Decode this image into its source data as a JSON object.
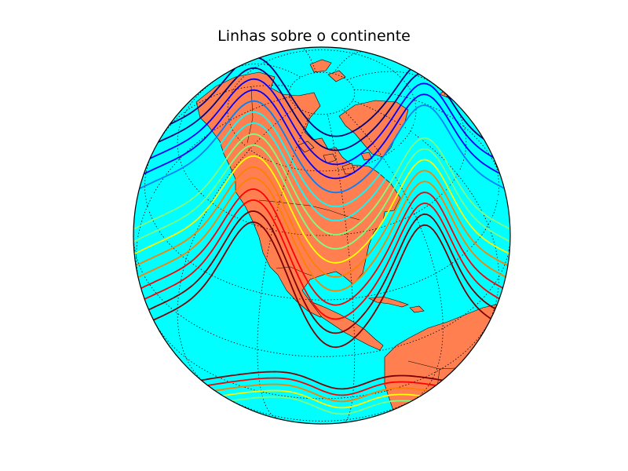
{
  "figure": {
    "title": "Linhas sobre o continente"
  },
  "map": {
    "projection": "orthographic",
    "center": {
      "lat": 40,
      "lon": -100
    },
    "graticule": {
      "meridian_step_deg": 30,
      "parallel_step_deg": 20,
      "style": "dotted"
    },
    "colors": {
      "ocean": "#00ffff",
      "land": "#ff7f50",
      "coastline": "#000000",
      "border": "#000000",
      "graticule": "#000000"
    },
    "contours": {
      "style": "jet colormap line contours",
      "colormap": [
        "#00007f",
        "#0000ff",
        "#007fff",
        "#00ffff",
        "#7fff7f",
        "#ffff00",
        "#ff7f00",
        "#ff0000",
        "#7f0000"
      ]
    }
  }
}
